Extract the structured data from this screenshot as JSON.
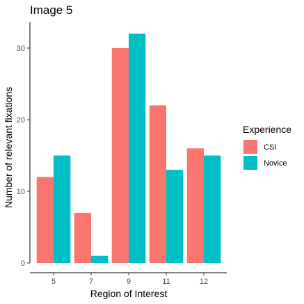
{
  "chart_data": {
    "type": "bar",
    "title": "Image 5",
    "xlabel": "Region of Interest",
    "ylabel": "Number of relevant fixations",
    "categories": [
      "5",
      "7",
      "9",
      "11",
      "12"
    ],
    "series": [
      {
        "name": "CSI",
        "color": "#F8766D",
        "values": [
          12,
          7,
          30,
          22,
          16
        ]
      },
      {
        "name": "Novice",
        "color": "#00BFC4",
        "values": [
          15,
          1,
          32,
          13,
          15
        ]
      }
    ],
    "ylim": [
      0,
      33.6
    ],
    "yticks": [
      0,
      10,
      20,
      30
    ],
    "legend": {
      "title": "Experience",
      "position": "right"
    },
    "grid": false
  }
}
